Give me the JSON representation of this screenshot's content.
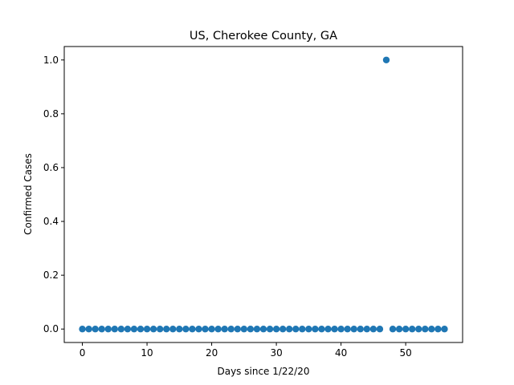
{
  "chart_data": {
    "type": "scatter",
    "title": "US, Cherokee County, GA",
    "xlabel": "Days since 1/22/20",
    "ylabel": "Confirmed Cases",
    "xlim": [
      -2.8,
      58.8
    ],
    "ylim": [
      -0.05,
      1.05
    ],
    "xticks": [
      0,
      10,
      20,
      30,
      40,
      50
    ],
    "yticks": [
      "0.0",
      "0.2",
      "0.4",
      "0.6",
      "0.8",
      "1.0"
    ],
    "grid": false,
    "marker_color": "#1f77b4",
    "series": [
      {
        "x": [
          0,
          1,
          2,
          3,
          4,
          5,
          6,
          7,
          8,
          9,
          10,
          11,
          12,
          13,
          14,
          15,
          16,
          17,
          18,
          19,
          20,
          21,
          22,
          23,
          24,
          25,
          26,
          27,
          28,
          29,
          30,
          31,
          32,
          33,
          34,
          35,
          36,
          37,
          38,
          39,
          40,
          41,
          42,
          43,
          44,
          45,
          46,
          47,
          48,
          49,
          50,
          51,
          52,
          53,
          54,
          55,
          56
        ],
        "y": [
          0,
          0,
          0,
          0,
          0,
          0,
          0,
          0,
          0,
          0,
          0,
          0,
          0,
          0,
          0,
          0,
          0,
          0,
          0,
          0,
          0,
          0,
          0,
          0,
          0,
          0,
          0,
          0,
          0,
          0,
          0,
          0,
          0,
          0,
          0,
          0,
          0,
          0,
          0,
          0,
          0,
          0,
          0,
          0,
          0,
          0,
          0,
          1,
          0,
          0,
          0,
          0,
          0,
          0,
          0,
          0,
          0
        ]
      }
    ]
  }
}
